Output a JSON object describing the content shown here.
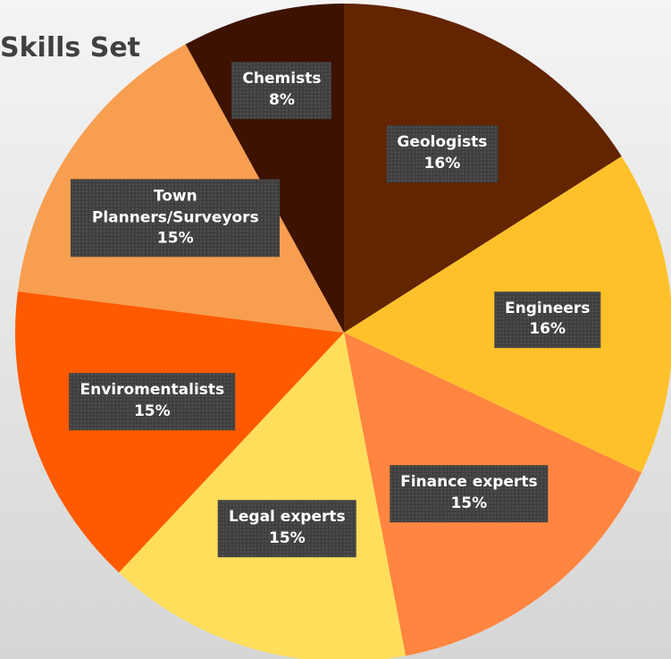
{
  "chart_data": {
    "type": "pie",
    "title": "Skills Set",
    "categories": [
      "Geologists",
      "Engineers",
      "Finance experts",
      "Legal experts",
      "Enviromentalists",
      "Town Planners/Surveyors",
      "Chemists"
    ],
    "values": [
      16,
      16,
      15,
      15,
      15,
      15,
      8
    ],
    "value_labels": [
      "16%",
      "16%",
      "15%",
      "15%",
      "15%",
      "15%",
      "8%"
    ],
    "colors": [
      "#632400",
      "#ffc12a",
      "#ff8540",
      "#ffde5c",
      "#ff5a00",
      "#f89e50",
      "#3d1200"
    ]
  }
}
